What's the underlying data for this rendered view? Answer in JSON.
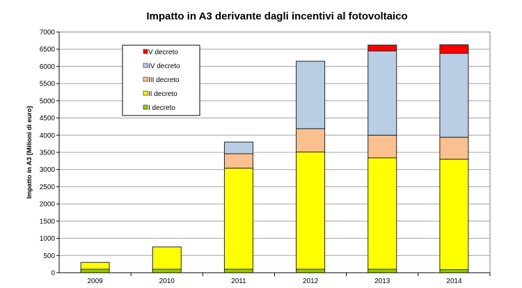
{
  "chart_data": {
    "type": "bar",
    "stacked": true,
    "title": "Impatto in A3 derivante dagli incentivi al fotovoltaico",
    "xlabel": "",
    "ylabel": "Impatto in A3 [Milioni di euro]",
    "ylim": [
      0,
      7000
    ],
    "yticks": [
      0,
      500,
      1000,
      1500,
      2000,
      2500,
      3000,
      3500,
      4000,
      4500,
      5000,
      5500,
      6000,
      6500,
      7000
    ],
    "grid": true,
    "legend_position": "top-left",
    "categories": [
      "2009",
      "2010",
      "2011",
      "2012",
      "2013",
      "2014"
    ],
    "series": [
      {
        "name": "I decreto",
        "color": "#99cc00",
        "values": [
          100,
          100,
          100,
          100,
          100,
          90
        ]
      },
      {
        "name": "II decreto",
        "color": "#ffff00",
        "values": [
          200,
          650,
          2940,
          3410,
          3240,
          3210
        ]
      },
      {
        "name": "III decreto",
        "color": "#fac090",
        "values": [
          0,
          0,
          420,
          680,
          660,
          640
        ]
      },
      {
        "name": "IV decreto",
        "color": "#b9cde5",
        "values": [
          0,
          0,
          340,
          1960,
          2450,
          2440
        ]
      },
      {
        "name": "V decreto",
        "color": "#ff0000",
        "values": [
          0,
          0,
          0,
          0,
          170,
          250
        ]
      }
    ]
  }
}
